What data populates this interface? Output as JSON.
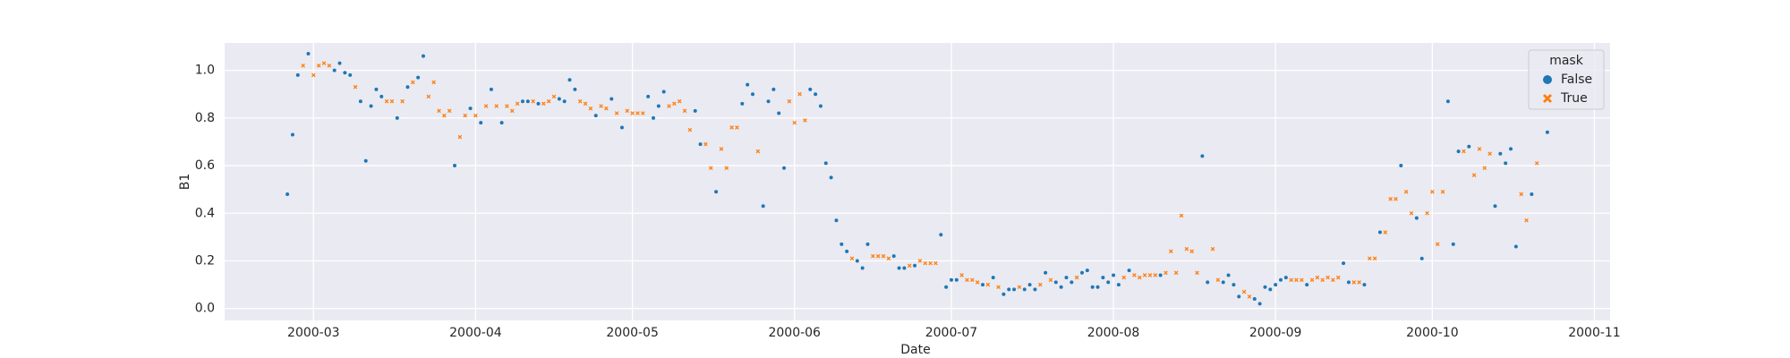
{
  "chart_data": {
    "type": "scatter",
    "x_label": "Date",
    "y_label": "B1",
    "legend_title": "mask",
    "legend": "upper right",
    "grid": true,
    "xlim": [
      "2000-02-13",
      "2000-11-04"
    ],
    "xticks": [
      {
        "value": "2000-03-01",
        "label": "2000-03"
      },
      {
        "value": "2000-04-01",
        "label": "2000-04"
      },
      {
        "value": "2000-05-01",
        "label": "2000-05"
      },
      {
        "value": "2000-06-01",
        "label": "2000-06"
      },
      {
        "value": "2000-07-01",
        "label": "2000-07"
      },
      {
        "value": "2000-08-01",
        "label": "2000-08"
      },
      {
        "value": "2000-09-01",
        "label": "2000-09"
      },
      {
        "value": "2000-10-01",
        "label": "2000-10"
      },
      {
        "value": "2000-11-01",
        "label": "2000-11"
      }
    ],
    "ylim": [
      -0.05,
      1.115
    ],
    "yticks": [
      {
        "value": 0,
        "label": "0.0"
      },
      {
        "value": 0.2,
        "label": "0.2"
      },
      {
        "value": 0.4,
        "label": "0.4"
      },
      {
        "value": 0.6,
        "label": "0.6"
      },
      {
        "value": 0.8,
        "label": "0.8"
      },
      {
        "value": 1,
        "label": "1.0"
      }
    ],
    "series": [
      {
        "name": "False",
        "color": "#1f77b4",
        "marker": "circle",
        "x": [
          "2000-02-25",
          "2000-02-26",
          "2000-02-27",
          "2000-02-29",
          "2000-03-05",
          "2000-03-06",
          "2000-03-07",
          "2000-03-08",
          "2000-03-10",
          "2000-03-11",
          "2000-03-12",
          "2000-03-13",
          "2000-03-14",
          "2000-03-17",
          "2000-03-19",
          "2000-03-21",
          "2000-03-22",
          "2000-03-28",
          "2000-03-31",
          "2000-04-02",
          "2000-04-04",
          "2000-04-06",
          "2000-04-10",
          "2000-04-11",
          "2000-04-13",
          "2000-04-17",
          "2000-04-18",
          "2000-04-19",
          "2000-04-20",
          "2000-04-24",
          "2000-04-27",
          "2000-04-29",
          "2000-05-04",
          "2000-05-05",
          "2000-05-06",
          "2000-05-07",
          "2000-05-13",
          "2000-05-14",
          "2000-05-17",
          "2000-05-22",
          "2000-05-23",
          "2000-05-24",
          "2000-05-26",
          "2000-05-27",
          "2000-05-28",
          "2000-05-29",
          "2000-05-30",
          "2000-06-04",
          "2000-06-05",
          "2000-06-06",
          "2000-06-07",
          "2000-06-08",
          "2000-06-09",
          "2000-06-10",
          "2000-06-11",
          "2000-06-13",
          "2000-06-14",
          "2000-06-15",
          "2000-06-20",
          "2000-06-21",
          "2000-06-22",
          "2000-06-24",
          "2000-06-29",
          "2000-06-30",
          "2000-07-01",
          "2000-07-02",
          "2000-07-07",
          "2000-07-09",
          "2000-07-11",
          "2000-07-12",
          "2000-07-13",
          "2000-07-15",
          "2000-07-16",
          "2000-07-17",
          "2000-07-19",
          "2000-07-21",
          "2000-07-22",
          "2000-07-23",
          "2000-07-24",
          "2000-07-26",
          "2000-07-27",
          "2000-07-28",
          "2000-07-29",
          "2000-07-30",
          "2000-07-31",
          "2000-08-01",
          "2000-08-02",
          "2000-08-04",
          "2000-08-10",
          "2000-08-18",
          "2000-08-19",
          "2000-08-22",
          "2000-08-23",
          "2000-08-24",
          "2000-08-25",
          "2000-08-28",
          "2000-08-29",
          "2000-08-30",
          "2000-08-31",
          "2000-09-01",
          "2000-09-02",
          "2000-09-03",
          "2000-09-07",
          "2000-09-14",
          "2000-09-15",
          "2000-09-18",
          "2000-09-21",
          "2000-09-25",
          "2000-09-28",
          "2000-09-29",
          "2000-10-04",
          "2000-10-05",
          "2000-10-06",
          "2000-10-08",
          "2000-10-13",
          "2000-10-14",
          "2000-10-15",
          "2000-10-16",
          "2000-10-17",
          "2000-10-20",
          "2000-10-23"
        ],
        "values": [
          0.48,
          0.73,
          0.98,
          1.07,
          1.0,
          1.03,
          0.99,
          0.98,
          0.87,
          0.62,
          0.85,
          0.92,
          0.89,
          0.8,
          0.93,
          0.97,
          1.06,
          0.6,
          0.84,
          0.78,
          0.92,
          0.78,
          0.87,
          0.87,
          0.86,
          0.88,
          0.87,
          0.96,
          0.92,
          0.81,
          0.88,
          0.76,
          0.89,
          0.8,
          0.85,
          0.91,
          0.83,
          0.69,
          0.49,
          0.86,
          0.94,
          0.9,
          0.43,
          0.87,
          0.92,
          0.82,
          0.59,
          0.92,
          0.9,
          0.85,
          0.61,
          0.55,
          0.37,
          0.27,
          0.24,
          0.2,
          0.17,
          0.27,
          0.22,
          0.17,
          0.17,
          0.18,
          0.31,
          0.09,
          0.12,
          0.12,
          0.1,
          0.13,
          0.06,
          0.08,
          0.08,
          0.08,
          0.1,
          0.08,
          0.15,
          0.11,
          0.09,
          0.13,
          0.11,
          0.15,
          0.16,
          0.09,
          0.09,
          0.13,
          0.11,
          0.14,
          0.1,
          0.16,
          0.14,
          0.64,
          0.11,
          0.11,
          0.14,
          0.1,
          0.05,
          0.04,
          0.02,
          0.09,
          0.08,
          0.1,
          0.12,
          0.13,
          0.1,
          0.19,
          0.11,
          0.1,
          0.32,
          0.6,
          0.38,
          0.21,
          0.87,
          0.27,
          0.66,
          0.68,
          0.43,
          0.65,
          0.61,
          0.67,
          0.26,
          0.48,
          0.74
        ]
      },
      {
        "name": "True",
        "color": "#ff7f0e",
        "marker": "x",
        "x": [
          "2000-02-28",
          "2000-03-01",
          "2000-03-02",
          "2000-03-03",
          "2000-03-04",
          "2000-03-09",
          "2000-03-15",
          "2000-03-16",
          "2000-03-18",
          "2000-03-20",
          "2000-03-23",
          "2000-03-24",
          "2000-03-25",
          "2000-03-26",
          "2000-03-27",
          "2000-03-29",
          "2000-03-30",
          "2000-04-01",
          "2000-04-03",
          "2000-04-05",
          "2000-04-07",
          "2000-04-08",
          "2000-04-09",
          "2000-04-12",
          "2000-04-14",
          "2000-04-15",
          "2000-04-16",
          "2000-04-21",
          "2000-04-22",
          "2000-04-23",
          "2000-04-25",
          "2000-04-26",
          "2000-04-28",
          "2000-04-30",
          "2000-05-01",
          "2000-05-02",
          "2000-05-03",
          "2000-05-08",
          "2000-05-09",
          "2000-05-10",
          "2000-05-11",
          "2000-05-12",
          "2000-05-15",
          "2000-05-16",
          "2000-05-18",
          "2000-05-19",
          "2000-05-20",
          "2000-05-21",
          "2000-05-25",
          "2000-05-31",
          "2000-06-01",
          "2000-06-02",
          "2000-06-03",
          "2000-06-12",
          "2000-06-16",
          "2000-06-17",
          "2000-06-18",
          "2000-06-19",
          "2000-06-23",
          "2000-06-25",
          "2000-06-26",
          "2000-06-27",
          "2000-06-28",
          "2000-07-03",
          "2000-07-04",
          "2000-07-05",
          "2000-07-06",
          "2000-07-08",
          "2000-07-10",
          "2000-07-14",
          "2000-07-18",
          "2000-07-20",
          "2000-07-25",
          "2000-08-03",
          "2000-08-05",
          "2000-08-06",
          "2000-08-07",
          "2000-08-08",
          "2000-08-09",
          "2000-08-11",
          "2000-08-12",
          "2000-08-13",
          "2000-08-14",
          "2000-08-15",
          "2000-08-16",
          "2000-08-17",
          "2000-08-20",
          "2000-08-21",
          "2000-08-26",
          "2000-08-27",
          "2000-09-04",
          "2000-09-05",
          "2000-09-06",
          "2000-09-08",
          "2000-09-09",
          "2000-09-10",
          "2000-09-11",
          "2000-09-12",
          "2000-09-13",
          "2000-09-16",
          "2000-09-17",
          "2000-09-19",
          "2000-09-20",
          "2000-09-22",
          "2000-09-23",
          "2000-09-24",
          "2000-09-26",
          "2000-09-27",
          "2000-09-30",
          "2000-10-01",
          "2000-10-02",
          "2000-10-03",
          "2000-10-07",
          "2000-10-09",
          "2000-10-10",
          "2000-10-11",
          "2000-10-12",
          "2000-10-18",
          "2000-10-19",
          "2000-10-21"
        ],
        "values": [
          1.02,
          0.98,
          1.02,
          1.03,
          1.02,
          0.93,
          0.87,
          0.87,
          0.87,
          0.95,
          0.89,
          0.95,
          0.83,
          0.81,
          0.83,
          0.72,
          0.81,
          0.81,
          0.85,
          0.85,
          0.85,
          0.83,
          0.86,
          0.87,
          0.86,
          0.87,
          0.89,
          0.87,
          0.86,
          0.84,
          0.85,
          0.84,
          0.82,
          0.83,
          0.82,
          0.82,
          0.82,
          0.85,
          0.86,
          0.87,
          0.83,
          0.75,
          0.69,
          0.59,
          0.67,
          0.59,
          0.76,
          0.76,
          0.66,
          0.87,
          0.78,
          0.9,
          0.79,
          0.21,
          0.22,
          0.22,
          0.22,
          0.21,
          0.18,
          0.2,
          0.19,
          0.19,
          0.19,
          0.14,
          0.12,
          0.12,
          0.11,
          0.1,
          0.09,
          0.09,
          0.1,
          0.12,
          0.13,
          0.13,
          0.14,
          0.13,
          0.14,
          0.14,
          0.14,
          0.15,
          0.24,
          0.15,
          0.39,
          0.25,
          0.24,
          0.15,
          0.25,
          0.12,
          0.07,
          0.05,
          0.12,
          0.12,
          0.12,
          0.12,
          0.13,
          0.12,
          0.13,
          0.12,
          0.13,
          0.11,
          0.11,
          0.21,
          0.21,
          0.32,
          0.46,
          0.46,
          0.49,
          0.4,
          0.4,
          0.49,
          0.27,
          0.49,
          0.66,
          0.56,
          0.67,
          0.59,
          0.65,
          0.48,
          0.37,
          0.61
        ]
      }
    ]
  }
}
